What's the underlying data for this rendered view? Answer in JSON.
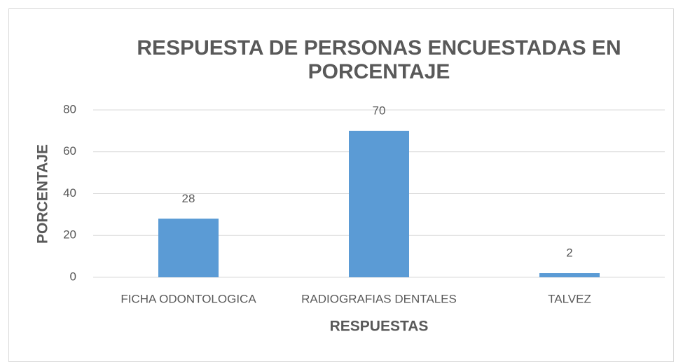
{
  "chart_data": {
    "type": "bar",
    "title": "RESPUESTA DE PERSONAS ENCUESTADAS EN PORCENTAJE",
    "x_label": "RESPUESTAS",
    "y_label": "PORCENTAJE",
    "categories": [
      "FICHA ODONTOLOGICA",
      "RADIOGRAFIAS DENTALES",
      "TALVEZ"
    ],
    "values": [
      28,
      70,
      2
    ],
    "color": "#5b9bd5",
    "ylim": [
      0,
      80
    ],
    "yticks": [
      0,
      20,
      40,
      60,
      80
    ],
    "grid": true
  }
}
